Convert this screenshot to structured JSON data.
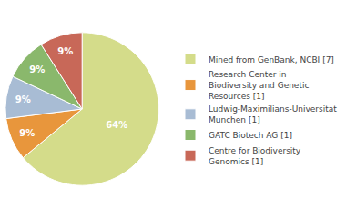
{
  "chart_data": {
    "type": "pie",
    "categories": [
      "Mined from GenBank, NCBI [7]",
      "Research Center in\nBiodiversity and Genetic\nResources [1]",
      "Ludwig-Maximilians-Universitat\nMunchen [1]",
      "GATC Biotech AG [1]",
      "Centre for Biodiversity\nGenomics [1]"
    ],
    "values": [
      64,
      9,
      9,
      9,
      9
    ],
    "value_labels": [
      "64%",
      "9%",
      "9%",
      "9%",
      "9%"
    ],
    "colors": [
      "#d4dc8a",
      "#e8963c",
      "#a8bcd4",
      "#8ab86c",
      "#c86858"
    ],
    "data_labels": true,
    "legend": "right"
  }
}
